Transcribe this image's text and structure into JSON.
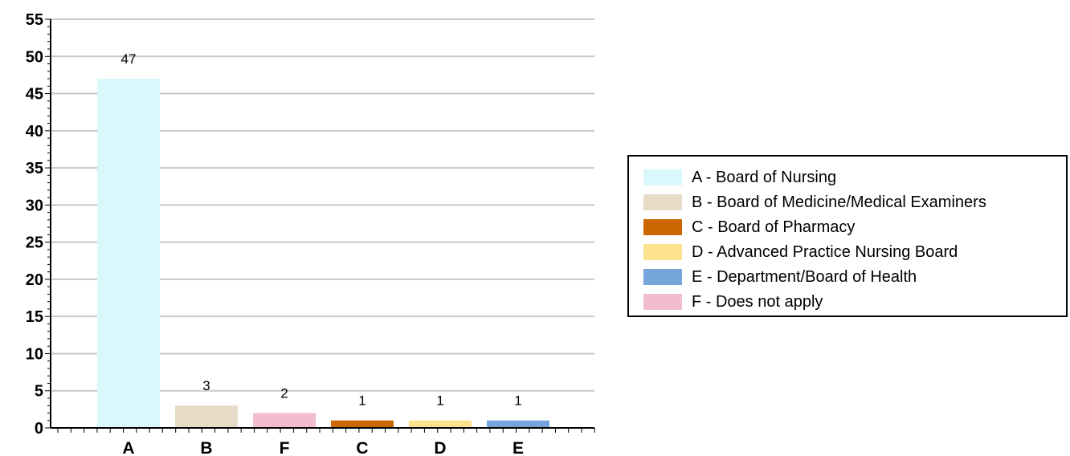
{
  "chart_data": {
    "type": "bar",
    "categories": [
      "A",
      "B",
      "F",
      "C",
      "D",
      "E"
    ],
    "values": [
      47,
      3,
      2,
      1,
      1,
      1
    ],
    "data_labels": [
      "47",
      "3",
      "2",
      "1",
      "1",
      "1"
    ],
    "colors": [
      "#d8f8fc",
      "#e6dcc8",
      "#f2bdd0",
      "#cc6600",
      "#fce28c",
      "#76a5dc"
    ],
    "ylim": [
      0,
      55
    ],
    "yticks": [
      0,
      5,
      10,
      15,
      20,
      25,
      30,
      35,
      40,
      45,
      50,
      55
    ],
    "grid": true,
    "title": "",
    "xlabel": "",
    "ylabel": "",
    "legend_position": "right",
    "legend": [
      {
        "label": "A - Board of Nursing",
        "color": "#d8f8fc"
      },
      {
        "label": "B - Board of Medicine/Medical Examiners",
        "color": "#e6dcc8"
      },
      {
        "label": "C - Board of Pharmacy",
        "color": "#cc6600"
      },
      {
        "label": "D - Advanced Practice Nursing Board",
        "color": "#fce28c"
      },
      {
        "label": "E - Department/Board of Health",
        "color": "#76a5dc"
      },
      {
        "label": "F - Does not apply",
        "color": "#f2bdd0"
      }
    ]
  }
}
